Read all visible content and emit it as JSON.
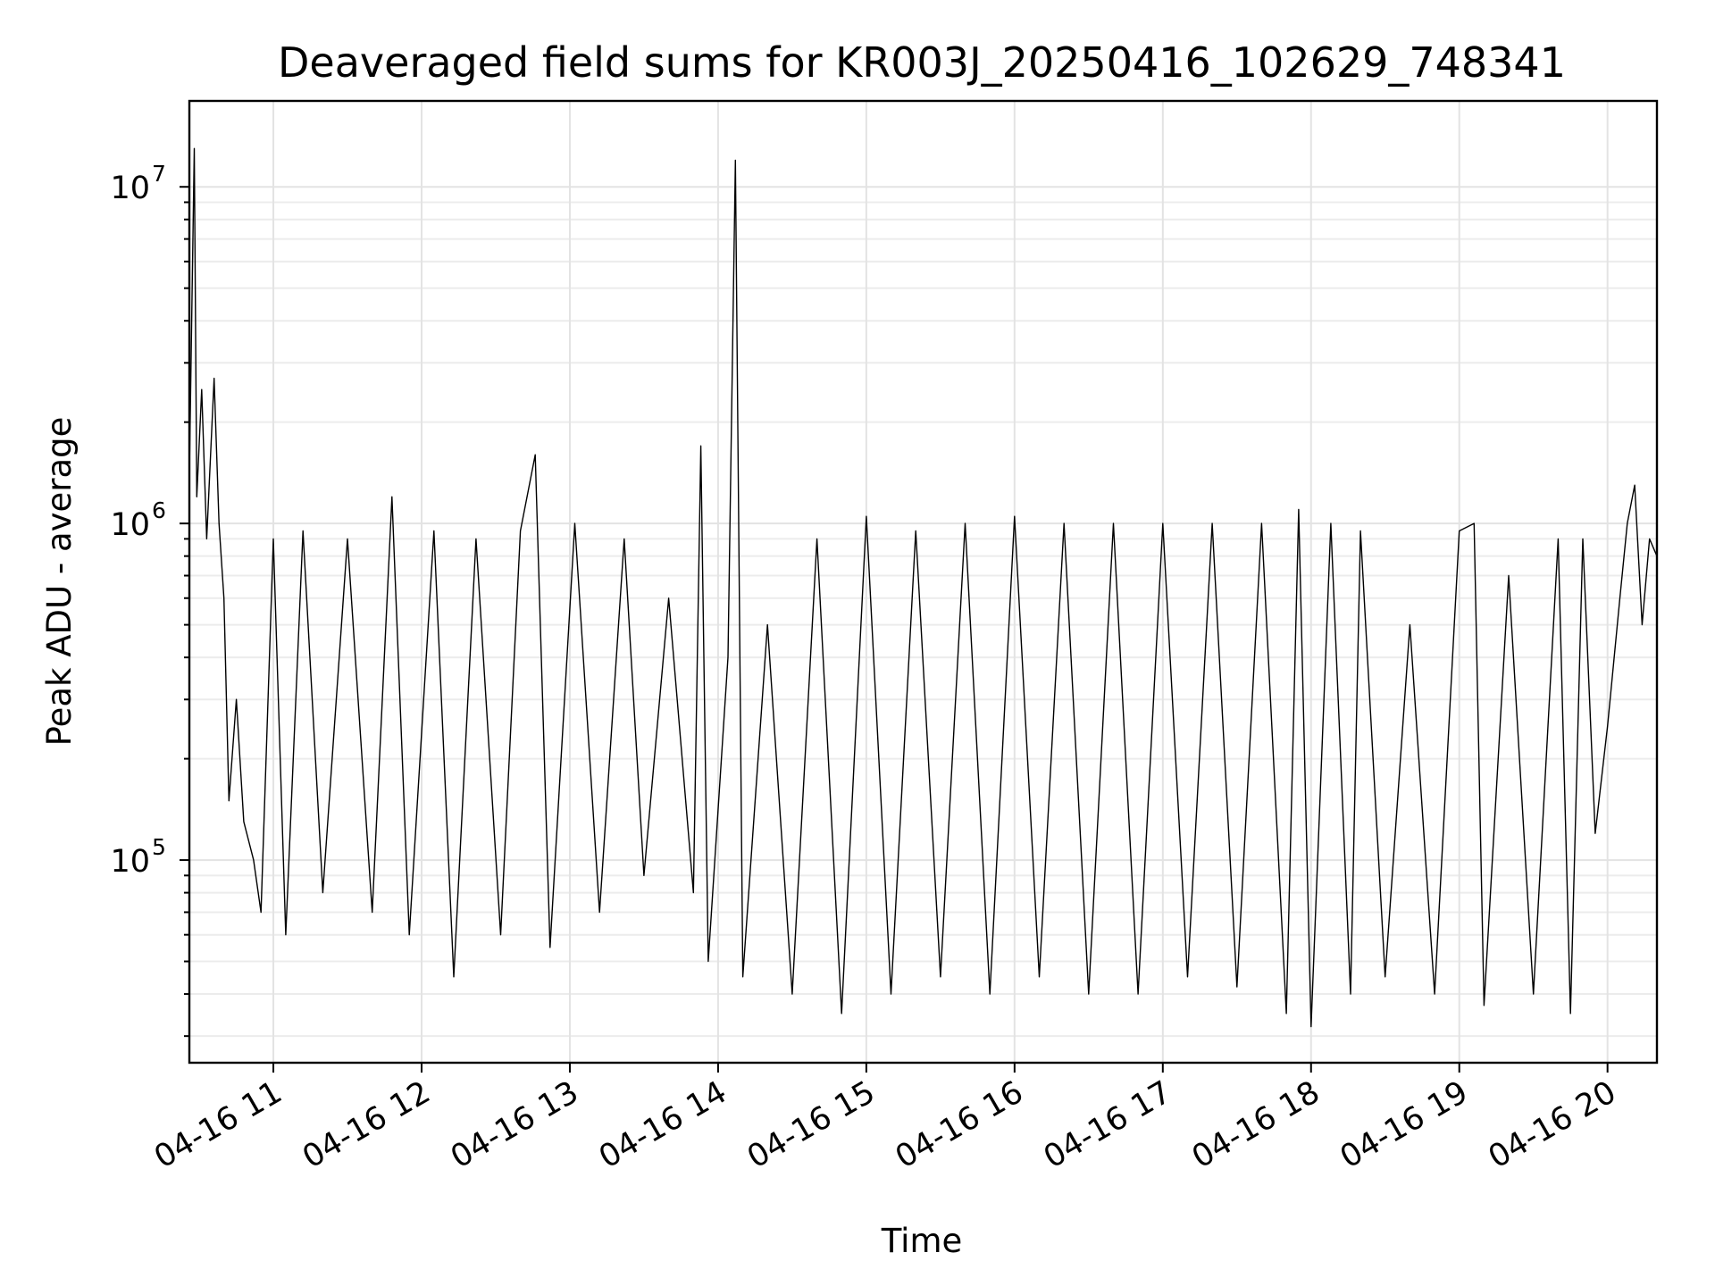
{
  "chart_data": {
    "type": "line",
    "title": "Deaveraged field sums for KR003J_20250416_102629_748341",
    "xlabel": "Time",
    "ylabel": "Peak ADU - average",
    "yscale": "log",
    "ylim": [
      25000,
      18000000
    ],
    "xlim": [
      "2025-04-16 10:26",
      "2025-04-16 20:20"
    ],
    "grid": true,
    "x_ticks": [
      {
        "x": "2025-04-16 11:00",
        "label": "04-16 11"
      },
      {
        "x": "2025-04-16 12:00",
        "label": "04-16 12"
      },
      {
        "x": "2025-04-16 13:00",
        "label": "04-16 13"
      },
      {
        "x": "2025-04-16 14:00",
        "label": "04-16 14"
      },
      {
        "x": "2025-04-16 15:00",
        "label": "04-16 15"
      },
      {
        "x": "2025-04-16 16:00",
        "label": "04-16 16"
      },
      {
        "x": "2025-04-16 17:00",
        "label": "04-16 17"
      },
      {
        "x": "2025-04-16 18:00",
        "label": "04-16 18"
      },
      {
        "x": "2025-04-16 19:00",
        "label": "04-16 19"
      },
      {
        "x": "2025-04-16 20:00",
        "label": "04-16 20"
      }
    ],
    "y_ticks": [
      {
        "y": 100000,
        "base": "10",
        "exp": "5"
      },
      {
        "y": 1000000,
        "base": "10",
        "exp": "6"
      },
      {
        "y": 10000000,
        "base": "10",
        "exp": "7"
      }
    ],
    "series": [
      {
        "color": "#000000",
        "points": [
          [
            "2025-04-16 10:26",
            1400000
          ],
          [
            "2025-04-16 10:28",
            13000000
          ],
          [
            "2025-04-16 10:29",
            1200000
          ],
          [
            "2025-04-16 10:31",
            2500000
          ],
          [
            "2025-04-16 10:33",
            900000
          ],
          [
            "2025-04-16 10:36",
            2700000
          ],
          [
            "2025-04-16 10:38",
            1000000
          ],
          [
            "2025-04-16 10:40",
            600000
          ],
          [
            "2025-04-16 10:42",
            150000
          ],
          [
            "2025-04-16 10:45",
            300000
          ],
          [
            "2025-04-16 10:48",
            130000
          ],
          [
            "2025-04-16 10:52",
            100000
          ],
          [
            "2025-04-16 10:55",
            70000
          ],
          [
            "2025-04-16 11:00",
            900000
          ],
          [
            "2025-04-16 11:05",
            60000
          ],
          [
            "2025-04-16 11:12",
            950000
          ],
          [
            "2025-04-16 11:20",
            80000
          ],
          [
            "2025-04-16 11:30",
            900000
          ],
          [
            "2025-04-16 11:40",
            70000
          ],
          [
            "2025-04-16 11:48",
            1200000
          ],
          [
            "2025-04-16 11:55",
            60000
          ],
          [
            "2025-04-16 12:05",
            950000
          ],
          [
            "2025-04-16 12:13",
            45000
          ],
          [
            "2025-04-16 12:22",
            900000
          ],
          [
            "2025-04-16 12:32",
            60000
          ],
          [
            "2025-04-16 12:40",
            950000
          ],
          [
            "2025-04-16 12:46",
            1600000
          ],
          [
            "2025-04-16 12:52",
            55000
          ],
          [
            "2025-04-16 13:02",
            1000000
          ],
          [
            "2025-04-16 13:12",
            70000
          ],
          [
            "2025-04-16 13:22",
            900000
          ],
          [
            "2025-04-16 13:30",
            90000
          ],
          [
            "2025-04-16 13:40",
            600000
          ],
          [
            "2025-04-16 13:50",
            80000
          ],
          [
            "2025-04-16 13:53",
            1700000
          ],
          [
            "2025-04-16 13:56",
            50000
          ],
          [
            "2025-04-16 14:04",
            400000
          ],
          [
            "2025-04-16 14:07",
            12000000
          ],
          [
            "2025-04-16 14:10",
            45000
          ],
          [
            "2025-04-16 14:20",
            500000
          ],
          [
            "2025-04-16 14:30",
            40000
          ],
          [
            "2025-04-16 14:40",
            900000
          ],
          [
            "2025-04-16 14:50",
            35000
          ],
          [
            "2025-04-16 15:00",
            1050000
          ],
          [
            "2025-04-16 15:10",
            40000
          ],
          [
            "2025-04-16 15:20",
            950000
          ],
          [
            "2025-04-16 15:30",
            45000
          ],
          [
            "2025-04-16 15:40",
            1000000
          ],
          [
            "2025-04-16 15:50",
            40000
          ],
          [
            "2025-04-16 16:00",
            1050000
          ],
          [
            "2025-04-16 16:10",
            45000
          ],
          [
            "2025-04-16 16:20",
            1000000
          ],
          [
            "2025-04-16 16:30",
            40000
          ],
          [
            "2025-04-16 16:40",
            1000000
          ],
          [
            "2025-04-16 16:50",
            40000
          ],
          [
            "2025-04-16 17:00",
            1000000
          ],
          [
            "2025-04-16 17:10",
            45000
          ],
          [
            "2025-04-16 17:20",
            1000000
          ],
          [
            "2025-04-16 17:30",
            42000
          ],
          [
            "2025-04-16 17:40",
            1000000
          ],
          [
            "2025-04-16 17:50",
            35000
          ],
          [
            "2025-04-16 17:55",
            1100000
          ],
          [
            "2025-04-16 18:00",
            32000
          ],
          [
            "2025-04-16 18:08",
            1000000
          ],
          [
            "2025-04-16 18:16",
            40000
          ],
          [
            "2025-04-16 18:20",
            950000
          ],
          [
            "2025-04-16 18:30",
            45000
          ],
          [
            "2025-04-16 18:40",
            500000
          ],
          [
            "2025-04-16 18:50",
            40000
          ],
          [
            "2025-04-16 19:00",
            950000
          ],
          [
            "2025-04-16 19:06",
            1000000
          ],
          [
            "2025-04-16 19:10",
            37000
          ],
          [
            "2025-04-16 19:20",
            700000
          ],
          [
            "2025-04-16 19:30",
            40000
          ],
          [
            "2025-04-16 19:40",
            900000
          ],
          [
            "2025-04-16 19:45",
            35000
          ],
          [
            "2025-04-16 19:50",
            900000
          ],
          [
            "2025-04-16 19:55",
            120000
          ],
          [
            "2025-04-16 20:00",
            250000
          ],
          [
            "2025-04-16 20:05",
            600000
          ],
          [
            "2025-04-16 20:08",
            1000000
          ],
          [
            "2025-04-16 20:11",
            1300000
          ],
          [
            "2025-04-16 20:14",
            500000
          ],
          [
            "2025-04-16 20:17",
            900000
          ],
          [
            "2025-04-16 20:20",
            800000
          ]
        ]
      }
    ]
  }
}
